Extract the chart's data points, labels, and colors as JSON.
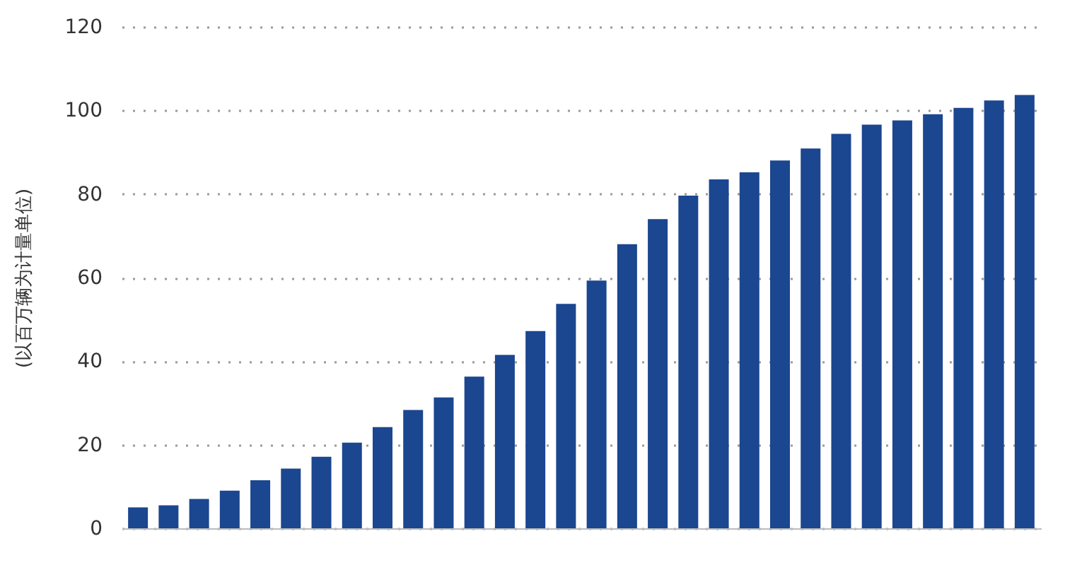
{
  "chart_data": {
    "type": "bar",
    "ylabel": "(以百万辆为计量单位)",
    "categories": [
      null,
      null,
      null,
      null,
      null,
      null,
      null,
      null,
      null,
      null,
      null,
      null,
      null,
      null,
      null,
      null,
      null,
      null,
      null,
      null,
      null,
      null,
      null,
      null,
      null,
      null,
      null,
      null,
      null,
      null
    ],
    "values": [
      5.0,
      5.5,
      7.0,
      9.0,
      11.5,
      14.3,
      17.1,
      20.5,
      24.2,
      28.3,
      31.3,
      36.3,
      41.5,
      47.2,
      53.7,
      59.3,
      68.0,
      74.0,
      79.6,
      83.5,
      85.2,
      88.0,
      90.9,
      94.4,
      96.6,
      97.6,
      99.1,
      100.6,
      102.4,
      103.7
    ],
    "color": "#1b4690",
    "ylim": [
      0,
      120
    ],
    "yticks": [
      0,
      20,
      40,
      60,
      80,
      100,
      120
    ],
    "grid": "y",
    "tick_labels": "y"
  }
}
